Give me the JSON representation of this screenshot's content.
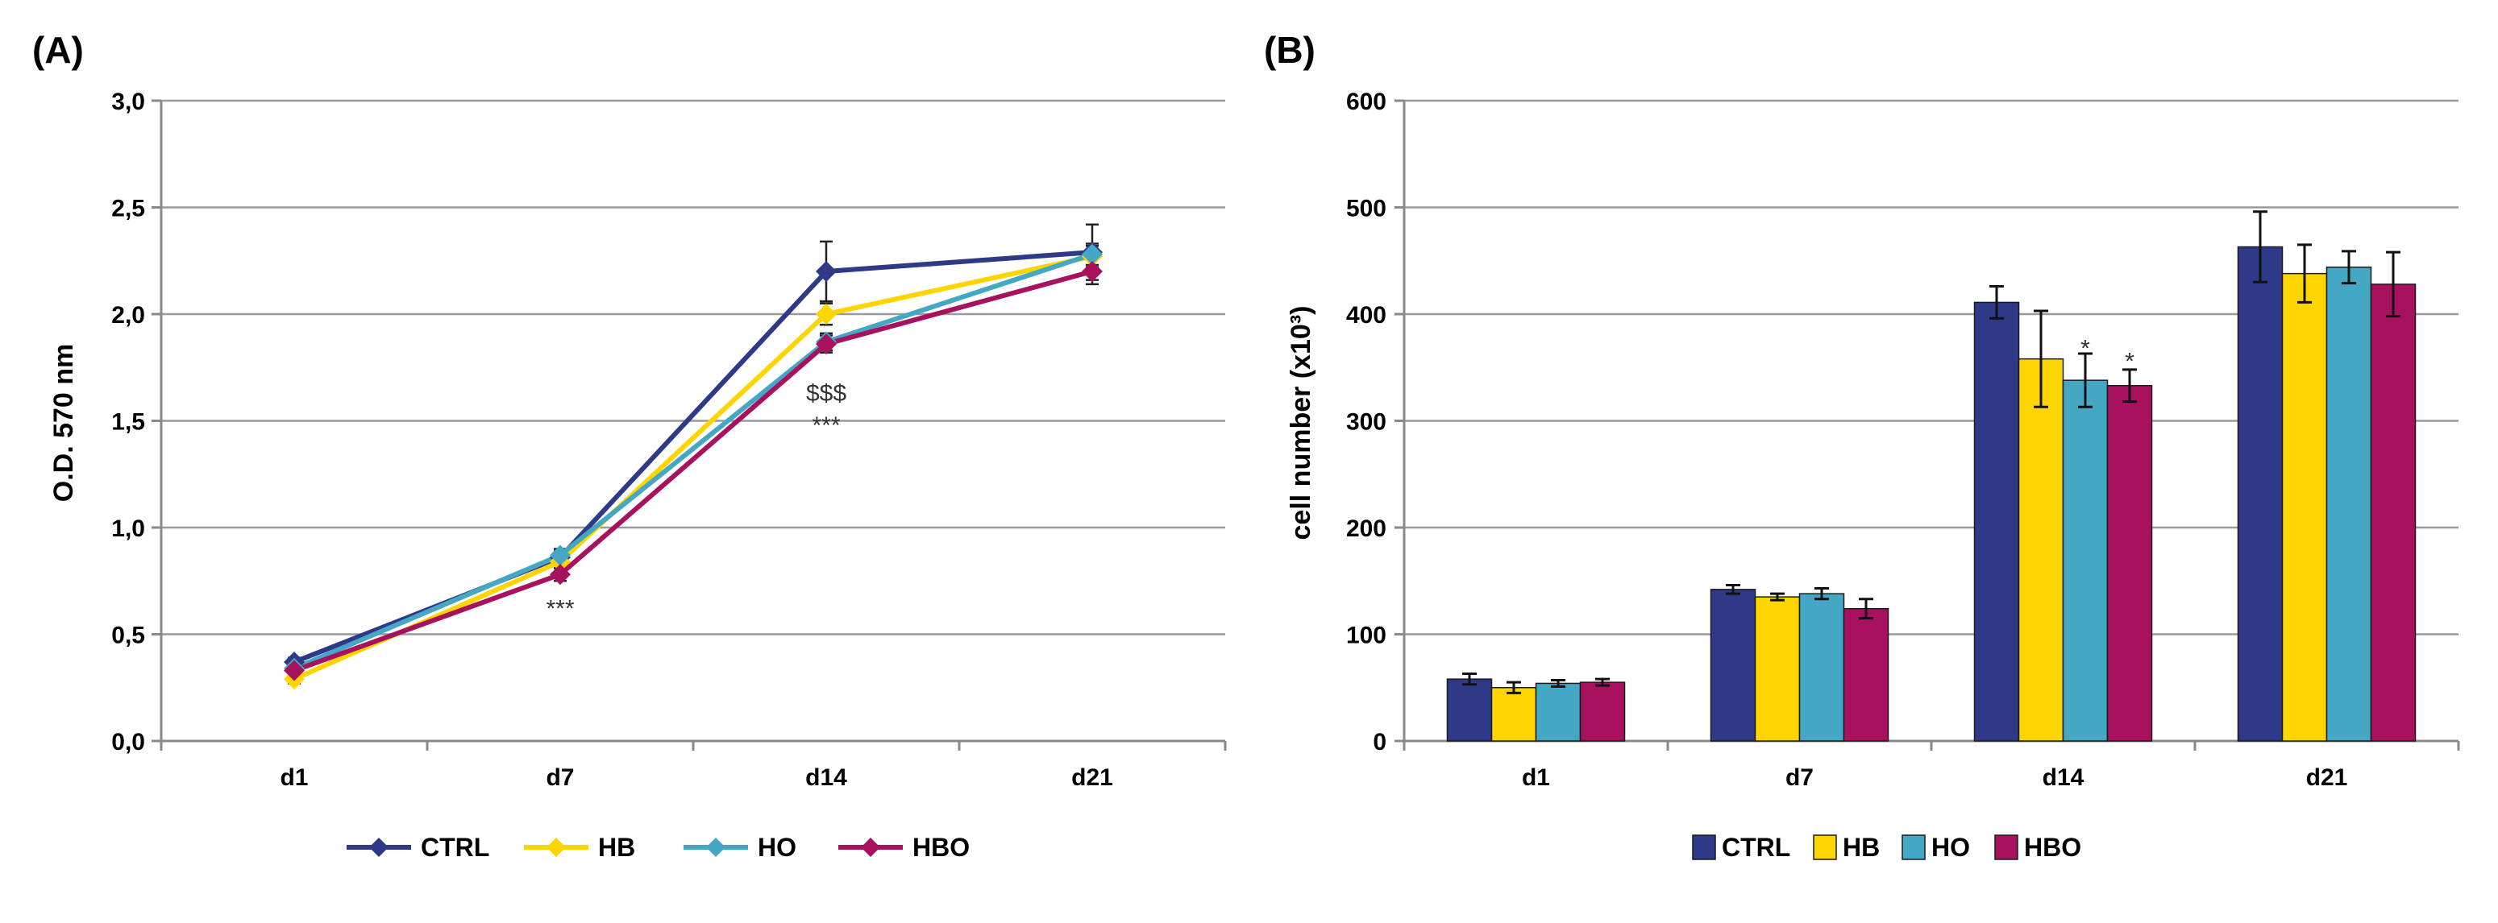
{
  "chart_data": [
    {
      "panel": "(A)",
      "type": "line",
      "title": "",
      "xlabel": "",
      "ylabel": "O.D. 570 nm",
      "categories": [
        "d1",
        "d7",
        "d14",
        "d21"
      ],
      "ylim": [
        0,
        3
      ],
      "yticks": [
        "0,0",
        "0,5",
        "1,0",
        "1,5",
        "2,0",
        "2,5",
        "3,0"
      ],
      "grid": true,
      "legend_position": "bottom",
      "series": [
        {
          "name": "CTRL",
          "color": "#2e3a87",
          "values": [
            0.37,
            0.86,
            2.2,
            2.29
          ],
          "errors": [
            0.02,
            0.03,
            0.14,
            0.13
          ]
        },
        {
          "name": "HB",
          "color": "#ffd500",
          "values": [
            0.29,
            0.84,
            2.0,
            2.27
          ],
          "errors": [
            0.02,
            0.03,
            0.05,
            0.05
          ]
        },
        {
          "name": "HO",
          "color": "#44a7c4",
          "values": [
            0.34,
            0.87,
            1.87,
            2.28
          ],
          "errors": [
            0.02,
            0.03,
            0.04,
            0.05
          ]
        },
        {
          "name": "HBO",
          "color": "#a8115e",
          "values": [
            0.33,
            0.78,
            1.86,
            2.2
          ],
          "errors": [
            0.02,
            0.03,
            0.04,
            0.06
          ]
        }
      ],
      "annotations": [
        {
          "text": "***",
          "category": "d7",
          "value": 0.62
        },
        {
          "text": "$$$",
          "category": "d14",
          "value": 1.63
        },
        {
          "text": "***",
          "category": "d14",
          "value": 1.48
        }
      ]
    },
    {
      "panel": "(B)",
      "type": "bar",
      "title": "",
      "xlabel": "",
      "ylabel": "cell number (x10³)",
      "categories": [
        "d1",
        "d7",
        "d14",
        "d21"
      ],
      "ylim": [
        0,
        600
      ],
      "yticks": [
        "0",
        "100",
        "200",
        "300",
        "400",
        "500",
        "600"
      ],
      "grid": true,
      "legend_position": "bottom",
      "series": [
        {
          "name": "CTRL",
          "color": "#2e3a87",
          "values": [
            58,
            142,
            411,
            463
          ],
          "errors": [
            5,
            4,
            15,
            33
          ]
        },
        {
          "name": "HB",
          "color": "#ffd500",
          "values": [
            50,
            135,
            358,
            438
          ],
          "errors": [
            5,
            3,
            45,
            27
          ]
        },
        {
          "name": "HO",
          "color": "#44a7c4",
          "values": [
            54,
            138,
            338,
            444
          ],
          "errors": [
            3,
            5,
            25,
            15
          ]
        },
        {
          "name": "HBO",
          "color": "#a8115e",
          "values": [
            55,
            124,
            333,
            428
          ],
          "errors": [
            3,
            9,
            15,
            30
          ]
        }
      ],
      "annotations": [
        {
          "text": "*",
          "category": "d14",
          "series": "HO",
          "value": 368
        },
        {
          "text": "*",
          "category": "d14",
          "series": "HBO",
          "value": 356
        }
      ]
    }
  ]
}
